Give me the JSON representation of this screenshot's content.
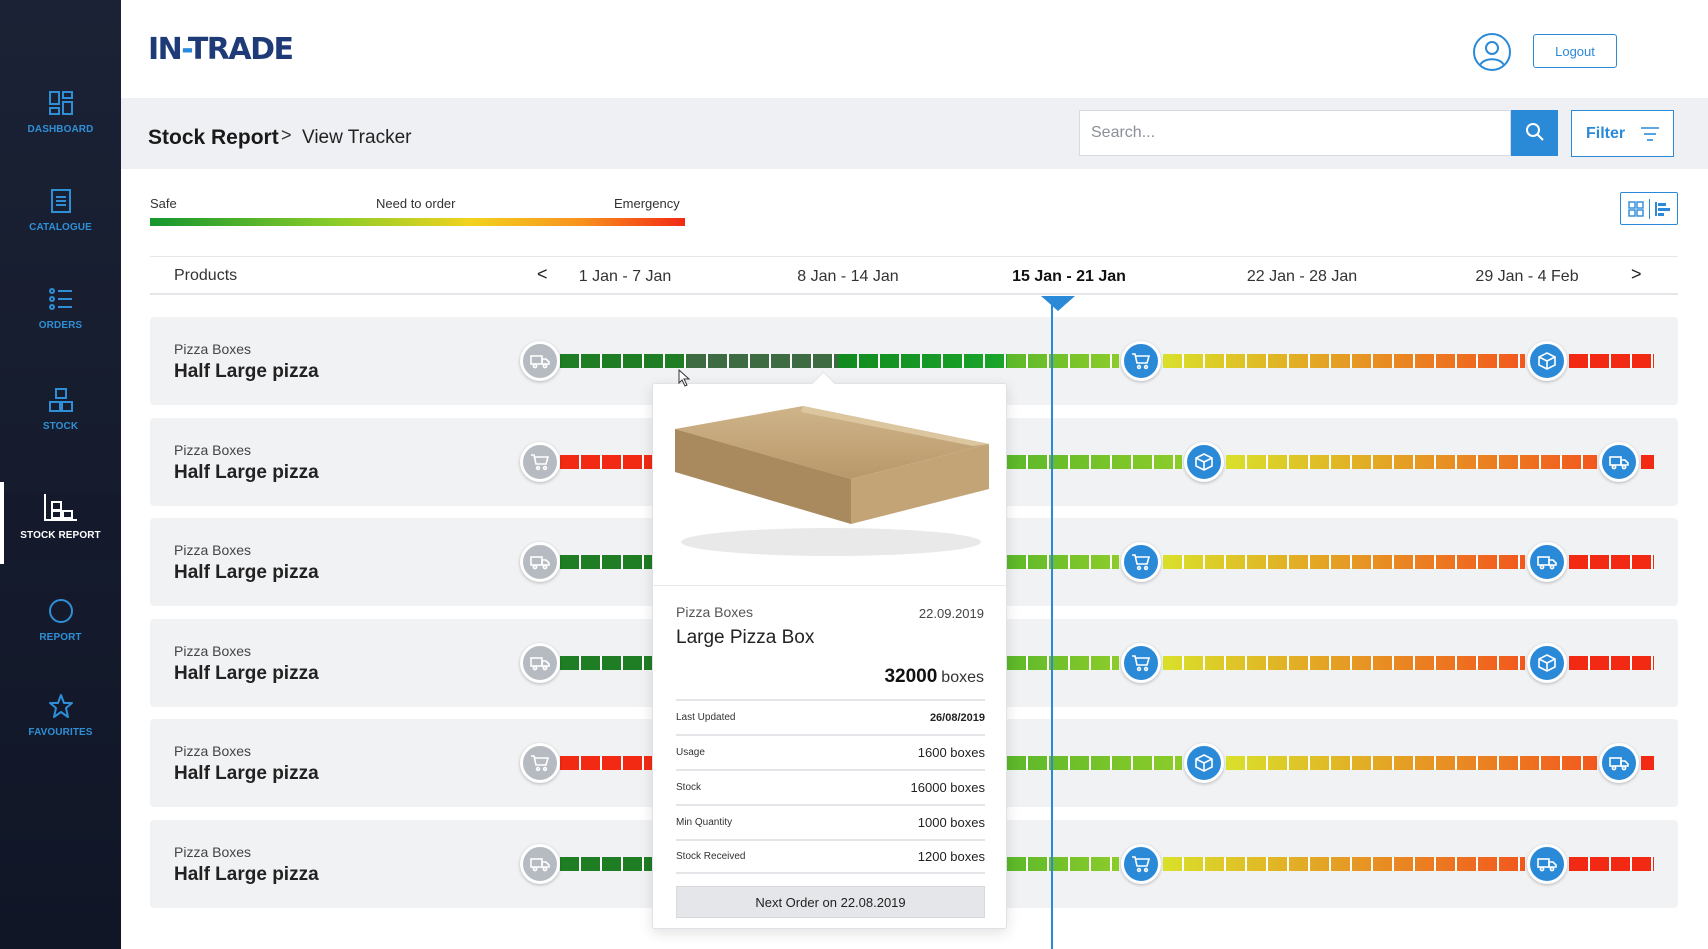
{
  "app": {
    "logo_main": "IN",
    "logo_dash": "-",
    "logo_rest": "TRADE"
  },
  "sidebar": {
    "items": [
      {
        "label": "DASHBOARD",
        "icon": "dashboard-icon"
      },
      {
        "label": "CATALOGUE",
        "icon": "catalogue-icon"
      },
      {
        "label": "ORDERS",
        "icon": "orders-icon"
      },
      {
        "label": "STOCK",
        "icon": "stock-icon"
      },
      {
        "label": "STOCK REPORT",
        "icon": "stock-report-icon",
        "active": true
      },
      {
        "label": "REPORT",
        "icon": "report-icon"
      },
      {
        "label": "FAVOURITES",
        "icon": "star-icon"
      }
    ]
  },
  "header": {
    "logout_label": "Logout"
  },
  "breadcrumb": {
    "main": "Stock Report",
    "separator": ">",
    "sub": "View Tracker"
  },
  "search": {
    "placeholder": "Search...",
    "value": ""
  },
  "filter": {
    "label": "Filter"
  },
  "legend": {
    "safe": "Safe",
    "need": "Need to order",
    "emergency": "Emergency"
  },
  "timeline": {
    "products_label": "Products",
    "prev": "<",
    "next": ">",
    "weeks": [
      "1 Jan - 7 Jan",
      "8 Jan - 14 Jan",
      "15 Jan - 21 Jan",
      "22 Jan - 28 Jan",
      "29 Jan - 4 Feb"
    ],
    "current_week_index": 2
  },
  "rows": [
    {
      "category": "Pizza Boxes",
      "name": "Half Large pizza"
    },
    {
      "category": "Pizza Boxes",
      "name": "Half Large pizza"
    },
    {
      "category": "Pizza Boxes",
      "name": "Half Large pizza"
    },
    {
      "category": "Pizza Boxes",
      "name": "Half Large pizza"
    },
    {
      "category": "Pizza Boxes",
      "name": "Half Large pizza"
    },
    {
      "category": "Pizza Boxes",
      "name": "Half Large pizza"
    }
  ],
  "popover": {
    "category": "Pizza Boxes",
    "date": "22.09.2019",
    "title": "Large Pizza Box",
    "quantity": "32000",
    "unit": "boxes",
    "details": [
      {
        "key": "Last Updated",
        "value": "26/08/2019"
      },
      {
        "key": "Usage",
        "value": "1600 boxes"
      },
      {
        "key": "Stock",
        "value": "16000 boxes"
      },
      {
        "key": "Min Quantity",
        "value": "1000 boxes"
      },
      {
        "key": "Stock Received",
        "value": "1200 boxes"
      }
    ],
    "button_label": "Next  Order on 22.08.2019"
  },
  "colors": {
    "accent": "#2b8ad8",
    "sidebar_bg": "#141a2b",
    "safe": "#14962e",
    "need": "#f2d21e",
    "emergency": "#f22a14"
  }
}
